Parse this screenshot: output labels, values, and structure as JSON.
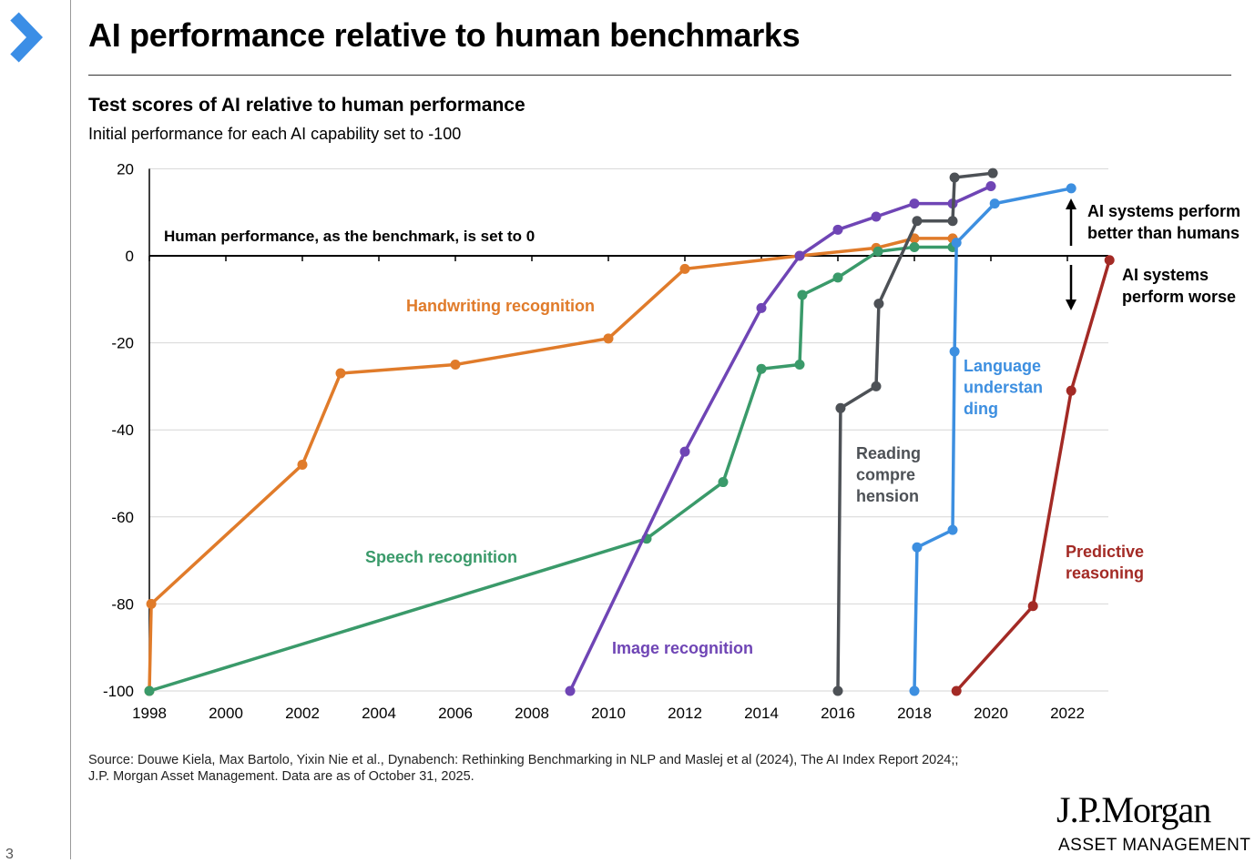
{
  "header": {
    "title": "AI performance relative to human benchmarks",
    "nav_icon": "chevron-right-icon",
    "accent": "#3b8ee6"
  },
  "chart_data": {
    "type": "line",
    "title": "Test scores of AI relative to human performance",
    "subtitle": "Initial performance for each AI capability set to -100",
    "xlim": [
      1998,
      2023.2
    ],
    "ylim": [
      -100,
      20
    ],
    "xticks": [
      1998,
      2000,
      2002,
      2004,
      2006,
      2008,
      2010,
      2012,
      2014,
      2016,
      2018,
      2020,
      2022
    ],
    "yticks": [
      20,
      0,
      -20,
      -40,
      -60,
      -80,
      -100
    ],
    "grid": true,
    "annotations": {
      "baseline": "Human performance, as the benchmark, is set to 0",
      "better": [
        "AI systems perform",
        "better than humans"
      ],
      "worse": [
        "AI systems",
        "perform worse"
      ]
    },
    "series": [
      {
        "name": "Handwriting recognition",
        "label_lines": [
          "Handwriting recognition"
        ],
        "color": "#e07b2a",
        "points": [
          [
            1998,
            -100
          ],
          [
            1998.05,
            -80
          ],
          [
            2002,
            -48
          ],
          [
            2003,
            -27
          ],
          [
            2006,
            -25
          ],
          [
            2010,
            -19
          ],
          [
            2012,
            -3
          ],
          [
            2015,
            0
          ],
          [
            2017,
            1.8
          ],
          [
            2018,
            4
          ],
          [
            2019,
            4
          ]
        ]
      },
      {
        "name": "Speech recognition",
        "label_lines": [
          "Speech recognition"
        ],
        "color": "#3a9a6a",
        "points": [
          [
            1998,
            -100
          ],
          [
            2011,
            -65
          ],
          [
            2013,
            -52
          ],
          [
            2014,
            -26
          ],
          [
            2015,
            -25
          ],
          [
            2015.07,
            -9
          ],
          [
            2016,
            -5
          ],
          [
            2017.05,
            1
          ],
          [
            2018,
            2
          ],
          [
            2019,
            2
          ]
        ]
      },
      {
        "name": "Image recognition",
        "label_lines": [
          "Image recognition"
        ],
        "color": "#6f45b5",
        "points": [
          [
            2009,
            -100
          ],
          [
            2012,
            -45
          ],
          [
            2014,
            -12
          ],
          [
            2015,
            0
          ],
          [
            2016,
            6
          ],
          [
            2017,
            9
          ],
          [
            2018,
            12
          ],
          [
            2019,
            12
          ],
          [
            2020,
            16
          ]
        ]
      },
      {
        "name": "Reading comprehension",
        "label_lines": [
          "Reading",
          "compre",
          "hension"
        ],
        "color": "#4d5156",
        "points": [
          [
            2016,
            -100
          ],
          [
            2016.07,
            -35
          ],
          [
            2017,
            -30
          ],
          [
            2017.07,
            -11
          ],
          [
            2018.07,
            8
          ],
          [
            2019,
            8
          ],
          [
            2019.05,
            18
          ],
          [
            2020.05,
            19
          ]
        ]
      },
      {
        "name": "Language understanding",
        "label_lines": [
          "Language",
          "understan",
          "ding"
        ],
        "color": "#3d8fe0",
        "points": [
          [
            2018,
            -100
          ],
          [
            2018.07,
            -67
          ],
          [
            2019,
            -63
          ],
          [
            2019.05,
            -22
          ],
          [
            2019.1,
            3
          ],
          [
            2020.1,
            12
          ],
          [
            2022.1,
            15.5
          ]
        ]
      },
      {
        "name": "Predictive reasoning",
        "label_lines": [
          "Predictive",
          "reasoning"
        ],
        "color": "#a32a25",
        "points": [
          [
            2019.1,
            -100
          ],
          [
            2021.1,
            -80.5
          ],
          [
            2022.1,
            -31
          ],
          [
            2023.1,
            -1
          ]
        ]
      }
    ]
  },
  "footer": {
    "source_line1": "Source: Douwe Kiela, Max Bartolo, Yixin Nie et al., Dynabench: Rethinking Benchmarking in NLP and Maslej et al (2024), The AI Index Report 2024;;",
    "source_line2": "J.P. Morgan Asset Management. Data are as of October 31, 2025.",
    "logo_name": "J.P.Morgan",
    "logo_sub": "ASSET MANAGEMENT",
    "page_number": "3"
  }
}
